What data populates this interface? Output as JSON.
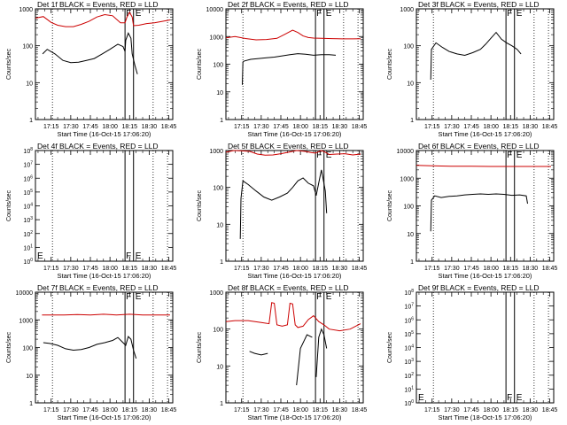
{
  "colors": {
    "events": "#000000",
    "lld": "#cc0000",
    "axis": "#000000"
  },
  "common": {
    "xticks": [
      "17:15",
      "17:30",
      "17:45",
      "18:00",
      "18:15",
      "18:30",
      "18:45"
    ],
    "xtick_minutes": [
      15,
      30,
      45,
      60,
      75,
      90,
      105
    ],
    "xrange_minutes": [
      3,
      108
    ],
    "dotted_lines_minutes": [
      16,
      93,
      104
    ],
    "solid_lines_minutes": [
      71.5,
      78
    ],
    "marker_F": "F",
    "marker_E": "E"
  },
  "chart_data": [
    {
      "type": "line",
      "title": "Det 1f BLACK = Events, RED = LLD",
      "xlabel": "Start Time (16-Oct-15 17:06:20)",
      "ylabel": "Counts/sec",
      "yscale": "log",
      "ylim": [
        1,
        1000
      ],
      "yticks": [
        "1",
        "10",
        "100",
        "1000"
      ],
      "series": [
        {
          "name": "Events",
          "color": "#000000",
          "x": [
            8,
            8.5,
            12,
            18,
            24,
            30,
            36,
            42,
            48,
            54,
            60,
            66,
            70,
            71.5,
            72,
            74,
            76,
            77,
            79,
            81,
            82
          ],
          "y": [
            null,
            60,
            80,
            60,
            40,
            35,
            36,
            40,
            45,
            60,
            80,
            110,
            95,
            70,
            140,
            220,
            160,
            60,
            30,
            17,
            null
          ]
        },
        {
          "name": "LLD",
          "color": "#cc0000",
          "x": [
            3,
            9,
            15,
            20,
            26,
            32,
            38,
            44,
            50,
            56,
            62,
            68,
            71.5,
            73,
            75,
            77,
            78,
            82,
            88,
            94,
            100,
            106
          ],
          "y": [
            560,
            620,
            430,
            360,
            330,
            330,
            380,
            460,
            600,
            700,
            650,
            420,
            420,
            600,
            800,
            600,
            350,
            360,
            400,
            420,
            460,
            500
          ]
        }
      ]
    },
    {
      "type": "line",
      "title": "Det 2f BLACK = Events, RED = LLD",
      "xlabel": "Start Time (16-Oct-15 17:06:20)",
      "ylabel": "Counts/sec",
      "yscale": "log",
      "ylim": [
        1,
        10000
      ],
      "yticks": [
        "1",
        "10",
        "100",
        "1000",
        "10000"
      ],
      "series": [
        {
          "name": "Events",
          "color": "#000000",
          "x": [
            15.5,
            16,
            17,
            22,
            28,
            34,
            40,
            46,
            52,
            58,
            64,
            70,
            76,
            82,
            87,
            88
          ],
          "y": [
            18,
            120,
            130,
            150,
            160,
            170,
            180,
            200,
            220,
            240,
            230,
            210,
            220,
            220,
            210,
            null
          ]
        },
        {
          "name": "LLD",
          "color": "#cc0000",
          "x": [
            3,
            10,
            18,
            26,
            34,
            42,
            48,
            54,
            58,
            62,
            66,
            70,
            76,
            84,
            92,
            100,
            106
          ],
          "y": [
            900,
            1000,
            850,
            760,
            780,
            860,
            1200,
            1700,
            1400,
            1050,
            920,
            880,
            860,
            840,
            820,
            820,
            830
          ]
        }
      ]
    },
    {
      "type": "line",
      "title": "Det 3f BLACK = Events, RED = LLD",
      "xlabel": "Start Time (16-Oct-15 17:06:20)",
      "ylabel": "Counts/sec",
      "yscale": "log",
      "ylim": [
        1,
        1000
      ],
      "yticks": [
        "1",
        "10",
        "100",
        "1000"
      ],
      "series": [
        {
          "name": "Events",
          "color": "#000000",
          "x": [
            14,
            14.5,
            18,
            23,
            28,
            34,
            40,
            46,
            52,
            56,
            60,
            64,
            68,
            72,
            76,
            80,
            83,
            84
          ],
          "y": [
            12,
            80,
            120,
            90,
            70,
            60,
            55,
            65,
            80,
            110,
            160,
            230,
            150,
            120,
            100,
            80,
            60,
            null
          ]
        }
      ]
    },
    {
      "type": "line",
      "title": "Det 4f BLACK = Events, RED = LLD",
      "xlabel": "Start Time (16-Oct-15 17:06:20)",
      "ylabel": "Counts/sec",
      "yscale": "log",
      "ylim": [
        1,
        100000000
      ],
      "yticks": [
        "10^0",
        "10^1",
        "10^2",
        "10^3",
        "10^4",
        "10^5",
        "10^6",
        "10^7",
        "10^8"
      ],
      "series": []
    },
    {
      "type": "line",
      "title": "Det 5f BLACK = Events, RED = LLD",
      "xlabel": "Start Time (16-Oct-15 17:06:20)",
      "ylabel": "Counts/sec",
      "yscale": "log",
      "ylim": [
        1,
        1000
      ],
      "yticks": [
        "1",
        "10",
        "100",
        "1000"
      ],
      "series": [
        {
          "name": "Events",
          "color": "#000000",
          "x": [
            14,
            14.5,
            16,
            20,
            26,
            32,
            38,
            44,
            50,
            54,
            58,
            62,
            66,
            70,
            72,
            75,
            76,
            77,
            79,
            80,
            81
          ],
          "y": [
            4,
            50,
            150,
            120,
            80,
            55,
            45,
            55,
            70,
            100,
            150,
            180,
            130,
            110,
            60,
            200,
            300,
            200,
            80,
            20,
            null
          ]
        },
        {
          "name": "LLD",
          "color": "#cc0000",
          "x": [
            3,
            9,
            15,
            21,
            27,
            33,
            39,
            45,
            51,
            57,
            63,
            69,
            71.5,
            73,
            76,
            79,
            82,
            88,
            94,
            100,
            106
          ],
          "y": [
            900,
            1000,
            980,
            950,
            800,
            750,
            760,
            820,
            900,
            1000,
            950,
            870,
            850,
            900,
            1000,
            900,
            780,
            800,
            820,
            760,
            800
          ]
        }
      ]
    },
    {
      "type": "line",
      "title": "Det 6f BLACK = Events, RED = LLD",
      "xlabel": "Start Time (16-Oct-15 17:06:20)",
      "ylabel": "Counts/sec",
      "yscale": "log",
      "ylim": [
        1,
        10000
      ],
      "yticks": [
        "1",
        "10",
        "100",
        "1000",
        "10000"
      ],
      "series": [
        {
          "name": "Events",
          "color": "#000000",
          "x": [
            14,
            14.5,
            17,
            22,
            28,
            34,
            40,
            46,
            52,
            58,
            64,
            70,
            76,
            82,
            87,
            88,
            89
          ],
          "y": [
            12,
            160,
            230,
            200,
            220,
            230,
            250,
            260,
            270,
            260,
            270,
            260,
            240,
            250,
            230,
            120,
            null
          ]
        },
        {
          "name": "LLD",
          "color": "#cc0000",
          "x": [
            3,
            15,
            30,
            45,
            60,
            75,
            90,
            106
          ],
          "y": [
            2900,
            2800,
            2700,
            2700,
            2650,
            2650,
            2650,
            2650
          ]
        }
      ]
    },
    {
      "type": "line",
      "title": "Det 7f BLACK = Events, RED = LLD",
      "xlabel": "Start Time (16-Oct-15 17:06:20)",
      "ylabel": "Counts/sec",
      "yscale": "log",
      "ylim": [
        1,
        10000
      ],
      "yticks": [
        "1",
        "10",
        "100",
        "1000",
        "10000"
      ],
      "series": [
        {
          "name": "Events",
          "color": "#000000",
          "x": [
            8,
            9,
            14,
            20,
            26,
            32,
            38,
            44,
            50,
            56,
            62,
            66,
            70,
            72,
            74,
            76,
            78,
            80,
            82
          ],
          "y": [
            null,
            150,
            140,
            120,
            90,
            80,
            85,
            100,
            130,
            150,
            180,
            230,
            150,
            120,
            250,
            200,
            80,
            40,
            null
          ]
        },
        {
          "name": "LLD",
          "color": "#cc0000",
          "x": [
            8,
            15,
            25,
            35,
            45,
            55,
            65,
            75,
            85,
            95,
            106
          ],
          "y": [
            1500,
            1500,
            1500,
            1550,
            1500,
            1600,
            1500,
            1600,
            1500,
            1500,
            1500
          ]
        }
      ]
    },
    {
      "type": "line",
      "title": "Det 8f BLACK = Events, RED = LLD",
      "xlabel": "Start Time (18-Oct-15 17:06:20)",
      "ylabel": "Counts/sec",
      "yscale": "log",
      "ylim": [
        1,
        1000
      ],
      "yticks": [
        "1",
        "10",
        "100",
        "1000"
      ],
      "series": [
        {
          "name": "Events",
          "color": "#000000",
          "x": [
            20,
            21,
            25,
            30,
            35,
            37
          ],
          "y": [
            null,
            25,
            22,
            20,
            22,
            null
          ]
        },
        {
          "name": "Events-b",
          "color": "#000000",
          "x": [
            56,
            57,
            60,
            65,
            69,
            70,
            72,
            74,
            76,
            78,
            80,
            82,
            84
          ],
          "y": [
            null,
            3,
            30,
            70,
            60,
            null,
            5,
            60,
            100,
            70,
            30,
            null,
            null
          ]
        },
        {
          "name": "LLD",
          "color": "#cc0000",
          "x": [
            3,
            10,
            20,
            30,
            36,
            38,
            40,
            42,
            46,
            50,
            52,
            54,
            56,
            58,
            62,
            66,
            70,
            74,
            78,
            82,
            90,
            98,
            106
          ],
          "y": [
            160,
            170,
            170,
            150,
            140,
            520,
            500,
            130,
            120,
            130,
            500,
            480,
            130,
            110,
            120,
            180,
            230,
            160,
            130,
            100,
            90,
            100,
            140
          ]
        }
      ]
    },
    {
      "type": "line",
      "title": "Det 9f BLACK = Events, RED = LLD",
      "xlabel": "Start Time (18-Oct-15 17:06:20)",
      "ylabel": "Counts/sec",
      "yscale": "log",
      "ylim": [
        1,
        100000000
      ],
      "yticks": [
        "10^0",
        "10^1",
        "10^2",
        "10^3",
        "10^4",
        "10^5",
        "10^6",
        "10^7",
        "10^8"
      ],
      "series": []
    }
  ]
}
